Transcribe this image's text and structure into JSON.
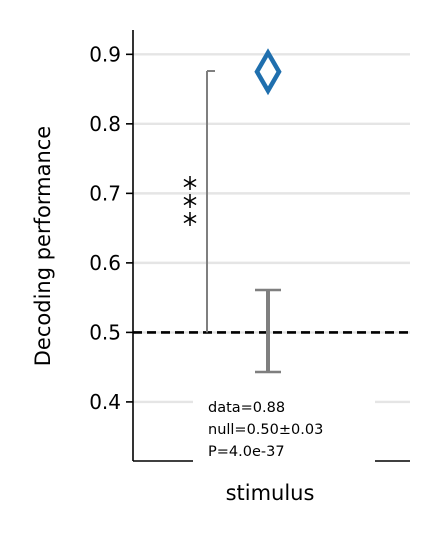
{
  "chart_data": {
    "type": "scatter",
    "title": "",
    "xlabel": "stimulus",
    "ylabel": "Decoding performance",
    "ylim": [
      0.315,
      0.935
    ],
    "yticks": [
      0.4,
      0.5,
      0.6,
      0.7,
      0.8,
      0.9
    ],
    "ytick_labels": [
      "0.4",
      "0.5",
      "0.6",
      "0.7",
      "0.8",
      "0.9"
    ],
    "grid": "horizontal",
    "significance_marker": "***",
    "data_value": 0.875,
    "null_mean": 0.5,
    "null_errorbar": [
      0.443,
      0.561
    ],
    "bracket_range": [
      0.5,
      0.876
    ],
    "chance_level": 0.5,
    "stats_lines": [
      "data=0.88",
      "null=0.50±0.03",
      "P=4.0e-37"
    ],
    "colors": {
      "data_marker": "#1f6fae",
      "null_errorbar": "#7f7f7f",
      "bracket": "#7f7f7f",
      "grid": "#e5e5e5",
      "chance_line": "#000000"
    }
  }
}
